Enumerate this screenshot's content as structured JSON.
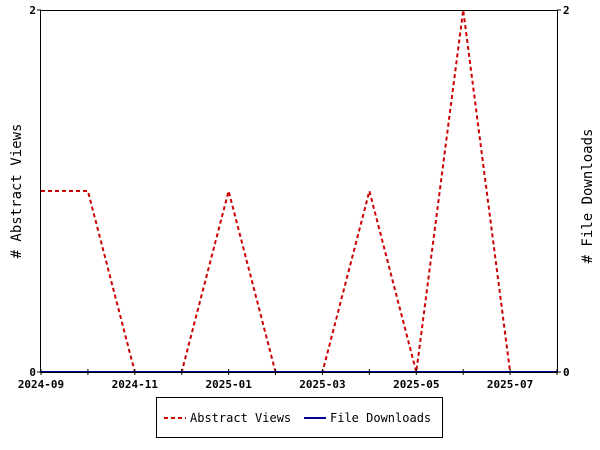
{
  "chart_data": {
    "type": "line",
    "x": [
      "2024-09",
      "2024-10",
      "2024-11",
      "2024-12",
      "2025-01",
      "2025-02",
      "2025-03",
      "2025-04",
      "2025-05",
      "2025-06",
      "2025-07",
      "2025-08"
    ],
    "xticks": [
      "2024-09",
      "2024-11",
      "2025-01",
      "2025-03",
      "2025-05",
      "2025-07"
    ],
    "xlim": [
      "2024-09",
      "2025-08"
    ],
    "ylabel": "# Abstract Views",
    "y2label": "# File Downloads",
    "ylim": [
      0,
      2
    ],
    "y2lim": [
      0,
      2
    ],
    "yticks": [
      0,
      2
    ],
    "y2ticks": [
      0,
      2
    ],
    "grid": false,
    "legend_position": "bottom-center",
    "series": [
      {
        "name": "Abstract Views",
        "axis": "left",
        "color": "#cc0000",
        "style": "dashed",
        "values": [
          1,
          1,
          0,
          0,
          1,
          0,
          0,
          1,
          0,
          2,
          0,
          0
        ]
      },
      {
        "name": "File Downloads",
        "axis": "right",
        "color": "#000099",
        "style": "solid",
        "values": [
          0,
          0,
          0,
          0,
          0,
          0,
          0,
          0,
          0,
          0,
          0,
          0
        ]
      }
    ]
  }
}
